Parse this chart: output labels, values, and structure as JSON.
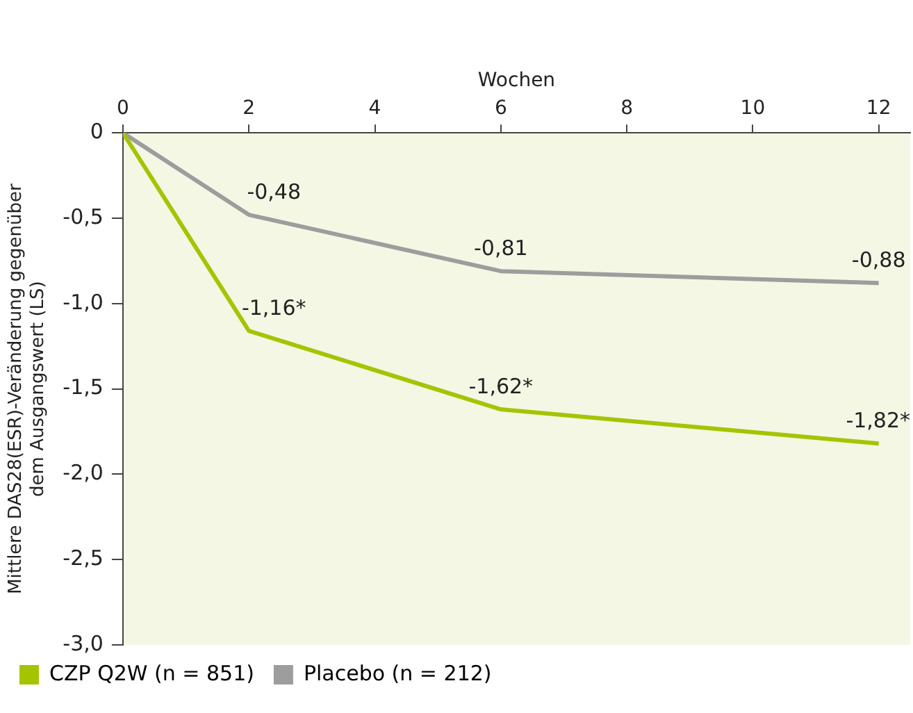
{
  "chart_data": {
    "type": "line",
    "xlabel": "Wochen",
    "ylabel": "Mittlere DAS28(ESR)-Veränderung gegenüber dem Ausgangswert (LS)",
    "x": [
      0,
      2,
      6,
      12
    ],
    "series": [
      {
        "name": "CZP Q2W (n = 851)",
        "color": "#a5c400",
        "values": [
          0,
          -1.16,
          -1.62,
          -1.82
        ],
        "value_labels": [
          null,
          "-1,16*",
          "-1,62*",
          "-1,82*"
        ]
      },
      {
        "name": "Placebo (n = 212)",
        "color": "#9d9d9d",
        "values": [
          0,
          -0.48,
          -0.81,
          -0.88
        ],
        "value_labels": [
          null,
          "-0,48",
          "-0,81",
          "-0,88"
        ]
      }
    ],
    "xlim": [
      0,
      12.5
    ],
    "xticks": [
      0,
      2,
      4,
      6,
      8,
      10,
      12
    ],
    "ylim": [
      -3,
      0
    ],
    "yticks": [
      {
        "value": 0,
        "label": "0"
      },
      {
        "value": -0.5,
        "label": "-0,5"
      },
      {
        "value": -1,
        "label": "-1,0"
      },
      {
        "value": -1.5,
        "label": "-1,5"
      },
      {
        "value": -2,
        "label": "-2,0"
      },
      {
        "value": -2.5,
        "label": "-2,5"
      },
      {
        "value": -3,
        "label": "-3,0"
      }
    ],
    "grid": false,
    "legend": "bottom left",
    "marker": "none",
    "line_style": "solid"
  }
}
